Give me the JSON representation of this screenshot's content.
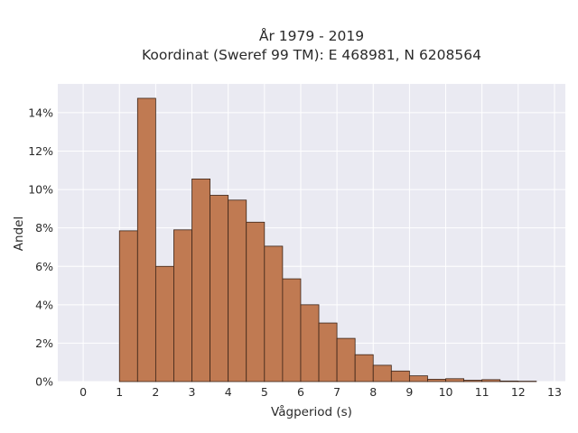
{
  "chart_data": {
    "type": "bar",
    "title_lines": [
      "År 1979 - 2019",
      "Koordinat (Sweref 99 TM): E 468981, N 6208564"
    ],
    "xlabel": "Vågperiod (s)",
    "ylabel": "Andel",
    "x_ticks": [
      "0",
      "1",
      "2",
      "3",
      "4",
      "5",
      "6",
      "7",
      "8",
      "9",
      "10",
      "11",
      "12",
      "13"
    ],
    "y_ticks": [
      "0%",
      "2%",
      "4%",
      "6%",
      "8%",
      "10%",
      "12%",
      "14%"
    ],
    "xlim": [
      -0.7,
      13.3
    ],
    "ylim": [
      0,
      15.5
    ],
    "bin_width": 0.5,
    "bin_starts": [
      1,
      1.5,
      2,
      2.5,
      3,
      3.5,
      4,
      4.5,
      5,
      5.5,
      6,
      6.5,
      7,
      7.5,
      8,
      8.5,
      9,
      9.5,
      10,
      10.5,
      11,
      11.5,
      12
    ],
    "values": [
      7.85,
      14.75,
      6.0,
      7.9,
      10.55,
      9.7,
      9.45,
      8.3,
      7.05,
      5.35,
      4.0,
      3.05,
      2.25,
      1.4,
      0.85,
      0.55,
      0.3,
      0.12,
      0.15,
      0.07,
      0.1,
      0.03,
      0.02
    ],
    "grid": true,
    "colors": {
      "bar_fill": "#c07a52",
      "bar_edge": "#3b2418",
      "plot_bg": "#eaeaf2",
      "grid": "#ffffff"
    }
  }
}
